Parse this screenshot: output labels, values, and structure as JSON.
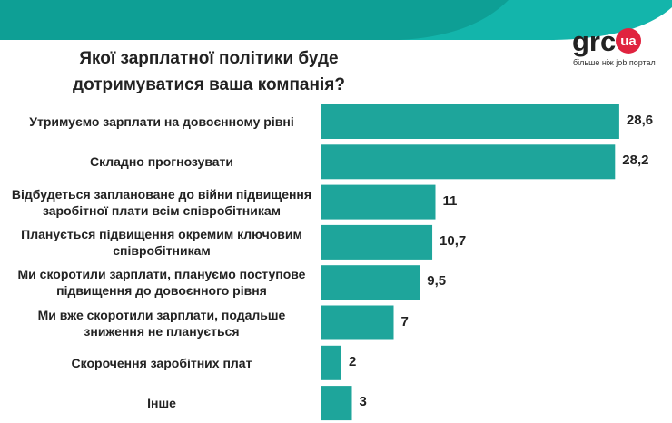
{
  "chart_data": {
    "type": "bar",
    "orientation": "horizontal",
    "title": "Якої зарплатної політики буде дотримуватися ваша компанія?",
    "logo": {
      "brand": "grc",
      "badge": "ua",
      "tagline": "більше ніж job портал"
    },
    "categories": [
      "Утримуємо зарплати на довоєнному рівні",
      "Складно прогнозувати",
      "Відбудеться заплановане до війни підвищення заробітної плати всім співробітникам",
      "Планується підвищення окремим ключовим співробітникам",
      "Ми скоротили зарплати, плануємо поступове підвищення до довоєнного рівня",
      "Ми вже скоротили зарплати, подальше зниження не планується",
      "Скорочення заробітних плат",
      "Інше"
    ],
    "values": [
      28.6,
      28.2,
      11,
      10.7,
      9.5,
      7,
      2,
      3
    ],
    "value_labels": [
      "28,6",
      "28,2",
      "11",
      "10,7",
      "9,5",
      "7",
      "2",
      "3"
    ],
    "color": "#1ea59b",
    "xlim": [
      0,
      30
    ]
  }
}
